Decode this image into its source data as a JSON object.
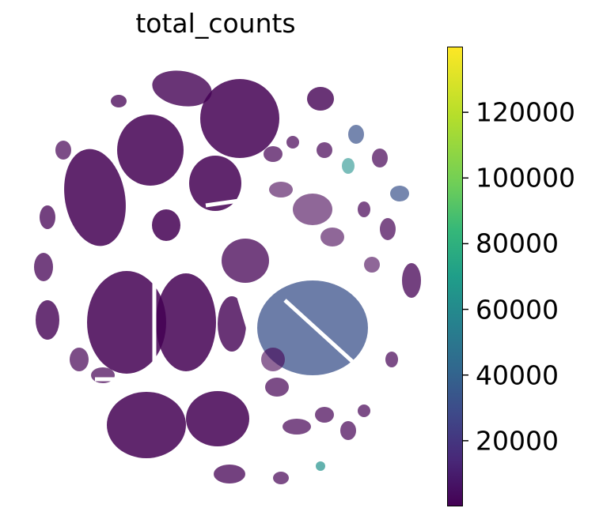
{
  "chart_data": {
    "type": "scatter",
    "title": "total_counts",
    "xlabel": "",
    "ylabel": "",
    "colorbar": {
      "colormap": "viridis",
      "range": [
        0,
        140000
      ],
      "ticks": [
        {
          "value": 20000,
          "label": "20000"
        },
        {
          "value": 40000,
          "label": "40000"
        },
        {
          "value": 60000,
          "label": "60000"
        },
        {
          "value": 80000,
          "label": "80000"
        },
        {
          "value": 100000,
          "label": "100000"
        },
        {
          "value": 120000,
          "label": "120000"
        }
      ]
    },
    "grid": false,
    "legend": "colorbar-right",
    "colors": {
      "low": "#440154",
      "mid_low": "#3b528b",
      "mid": "#21918c",
      "high": "#fde725"
    }
  }
}
